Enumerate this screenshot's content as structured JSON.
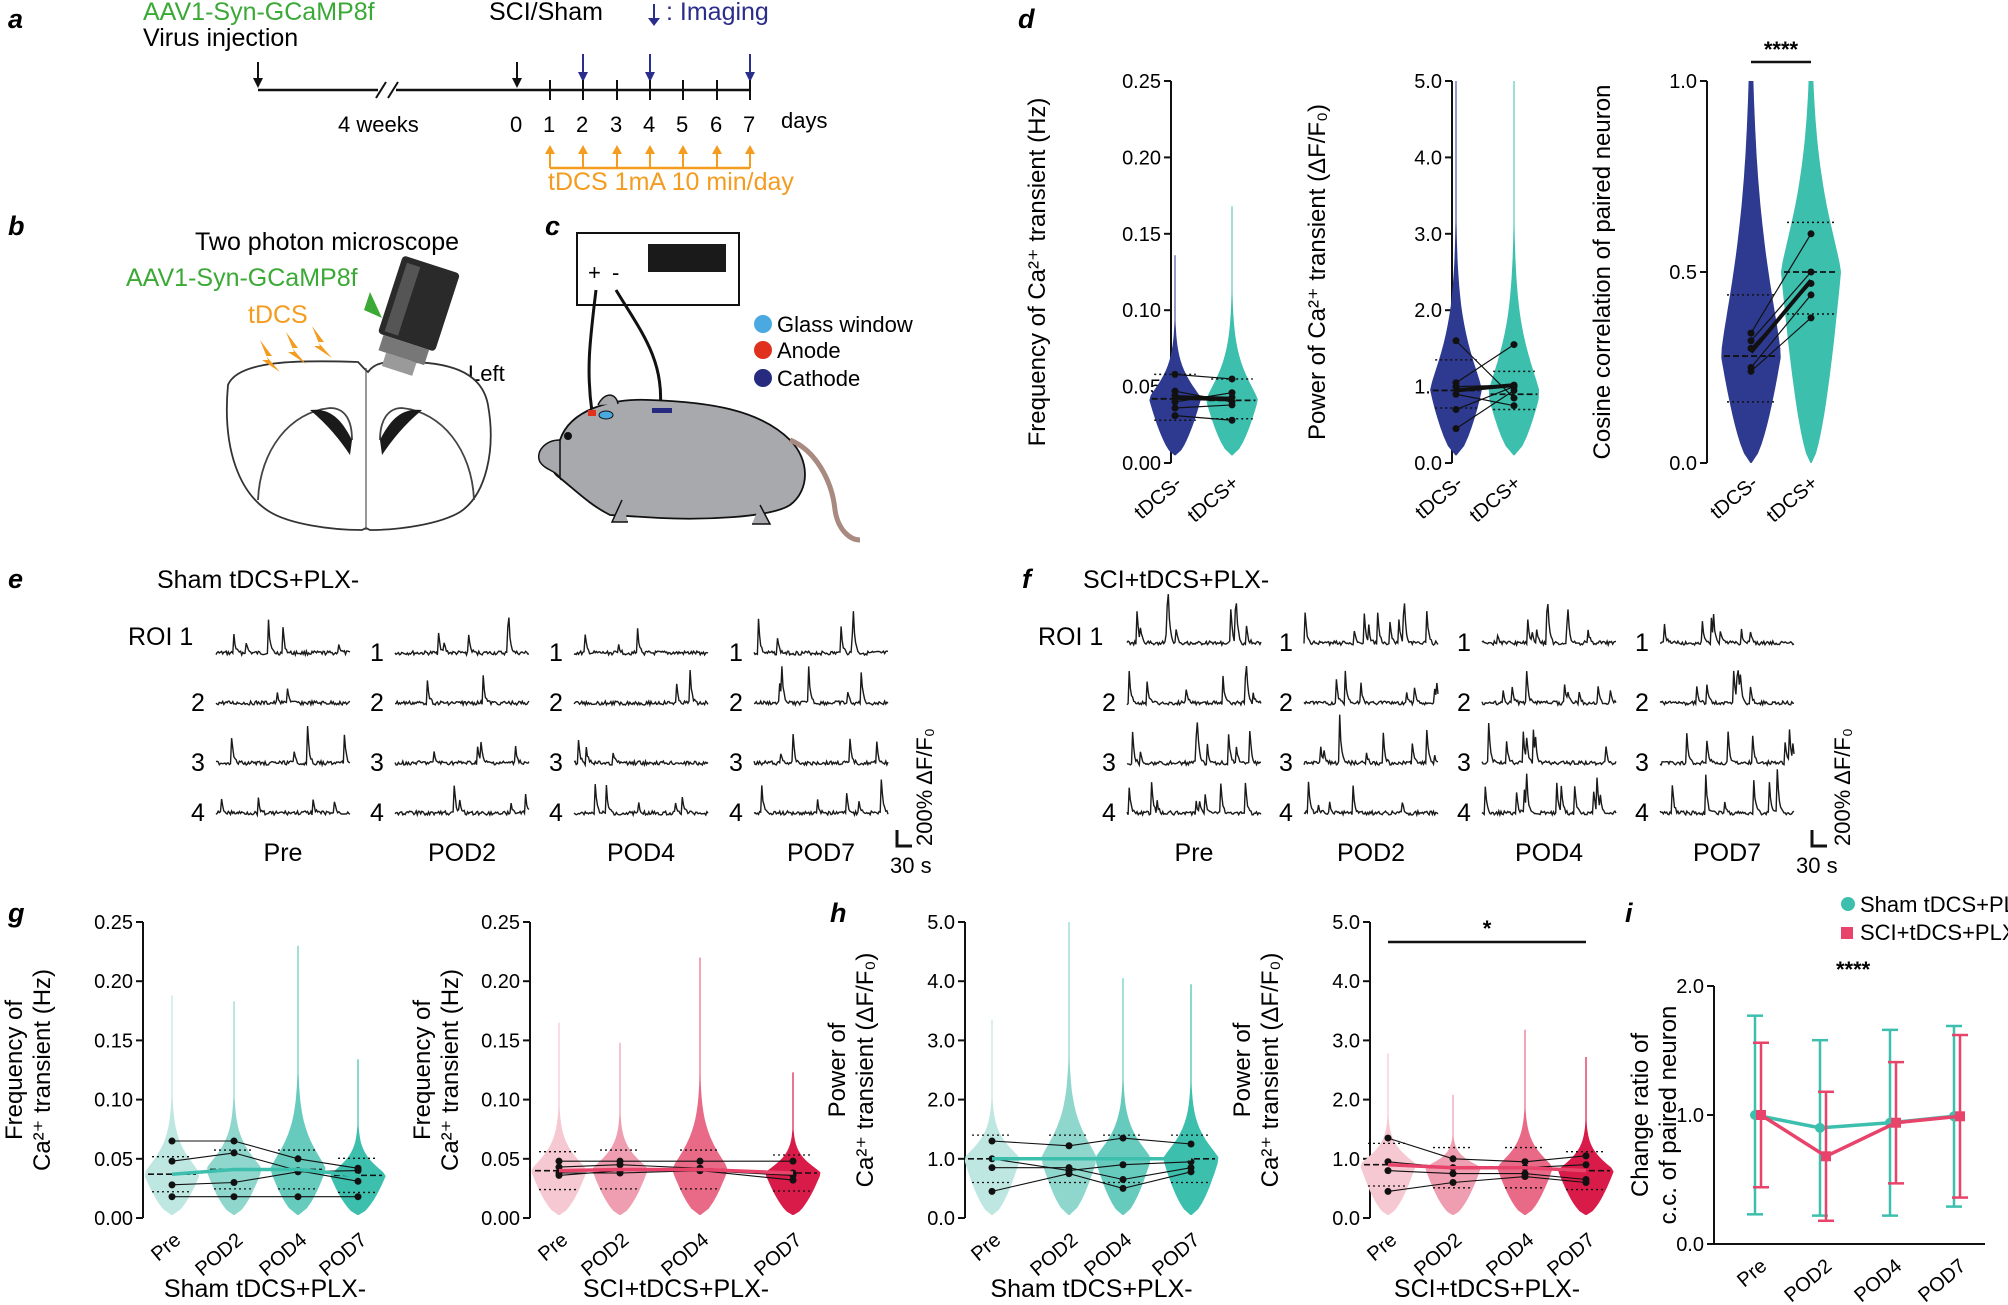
{
  "panel_labels": {
    "a": "a",
    "b": "b",
    "c": "c",
    "d": "d",
    "e": "e",
    "f": "f",
    "g": "g",
    "h": "h",
    "i": "i"
  },
  "colors": {
    "green": "#3aa935",
    "blue_text": "#2b2d8a",
    "orange": "#f39c1f",
    "navy": "#2e3a8f",
    "teal": "#3dbfae",
    "teal_light": "#bfe7e2",
    "teal_mid": "#8fd6cc",
    "pink_light": "#f6c8d1",
    "pink_mid": "#ef9db0",
    "pink": "#e8436a",
    "crimson": "#d81b48",
    "glass": "#4aa9e0",
    "anode": "#e0301e",
    "cathode": "#262b80",
    "mouse": "#a8a9ad"
  },
  "panel_a": {
    "virus_label": "AAV1-Syn-GCaMP8f",
    "virus_sub": "Virus injection",
    "sci_label": "SCI/Sham",
    "imaging_label": ": Imaging",
    "weeks_label": "4 weeks",
    "days": [
      "0",
      "1",
      "2",
      "3",
      "4",
      "5",
      "6",
      "7"
    ],
    "days_label": "days",
    "tdcs_label": "tDCS 1mA 10 min/day"
  },
  "panel_b": {
    "microscope_label": "Two photon microscope",
    "virus_label": "AAV1-Syn-GCaMP8f",
    "tdcs_label": "tDCS",
    "side_label": "Left"
  },
  "panel_c": {
    "plus": "+",
    "minus": "-",
    "legend": [
      "Glass window",
      "Anode",
      "Cathode"
    ]
  },
  "panel_d": {
    "xlabels": [
      "tDCS-",
      "tDCS+"
    ],
    "plot1": {
      "ylabel": "Frequency of Ca²⁺ transient (Hz)",
      "yticks": [
        "0.00",
        "0.05",
        "0.10",
        "0.15",
        "0.20",
        "0.25"
      ]
    },
    "plot2": {
      "ylabel": "Power of Ca²⁺ transient (ΔF/F₀)",
      "yticks": [
        "0.0",
        "1.0",
        "2.0",
        "3.0",
        "4.0",
        "5.0"
      ]
    },
    "plot3": {
      "ylabel": "Cosine correlation of paired neuron",
      "yticks": [
        "0.0",
        "0.5",
        "1.0"
      ],
      "significance": "****"
    }
  },
  "panel_e": {
    "title": "Sham tDCS+PLX-",
    "roi_first": "ROI 1",
    "roi_nums": [
      "1",
      "2",
      "3",
      "4"
    ],
    "conditions": [
      "Pre",
      "POD2",
      "POD4",
      "POD7"
    ],
    "scale_y": "200% ΔF/F₀",
    "scale_x": "30 s"
  },
  "panel_f": {
    "title": "SCI+tDCS+PLX-",
    "roi_first": "ROI 1",
    "roi_nums": [
      "1",
      "2",
      "3",
      "4"
    ],
    "conditions": [
      "Pre",
      "POD2",
      "POD4",
      "POD7"
    ],
    "scale_y": "200% ΔF/F₀",
    "scale_x": "30 s"
  },
  "panel_g": {
    "ylabel_line1": "Frequency of",
    "ylabel_line2": "Ca²⁺ transient (Hz)",
    "yticks": [
      "0.00",
      "0.05",
      "0.10",
      "0.15",
      "0.20",
      "0.25"
    ],
    "xlabels": [
      "Pre",
      "POD2",
      "POD4",
      "POD7"
    ],
    "plot1_title": "Sham tDCS+PLX-",
    "plot2_title": "SCI+tDCS+PLX-"
  },
  "panel_h": {
    "ylabel_line1": "Power of",
    "ylabel_line2": "Ca²⁺ transient (ΔF/F₀)",
    "yticks": [
      "0.0",
      "1.0",
      "2.0",
      "3.0",
      "4.0",
      "5.0"
    ],
    "xlabels": [
      "Pre",
      "POD2",
      "POD4",
      "POD7"
    ],
    "plot1_title": "Sham tDCS+PLX-",
    "plot2_title": "SCI+tDCS+PLX-",
    "significance": "*"
  },
  "panel_i": {
    "ylabel_line1": "Change ratio of",
    "ylabel_line2": "c.c. of paired neuron",
    "yticks": [
      "0.0",
      "1.0",
      "2.0"
    ],
    "xlabels": [
      "Pre",
      "POD2",
      "POD4",
      "POD7"
    ],
    "legend": [
      "Sham tDCS+PLX-",
      "SCI+tDCS+PLX-"
    ],
    "significance": "****"
  },
  "chart_data": [
    {
      "type": "violin",
      "title": "d: Frequency of Ca2+ transient",
      "categories": [
        "tDCS-",
        "tDCS+"
      ],
      "ylabel": "Frequency of Ca2+ transient (Hz)",
      "ylim": [
        0,
        0.25
      ],
      "medians": [
        0.042,
        0.041
      ],
      "quartiles": [
        [
          0.028,
          0.058
        ],
        [
          0.029,
          0.055
        ]
      ],
      "maxima": [
        0.136,
        0.168
      ],
      "paired_means": [
        [
          0.058,
          0.055
        ],
        [
          0.047,
          0.04
        ],
        [
          0.044,
          0.043
        ],
        [
          0.04,
          0.046
        ],
        [
          0.036,
          0.038
        ],
        [
          0.031,
          0.028
        ]
      ]
    },
    {
      "type": "violin",
      "title": "d: Power of Ca2+ transient",
      "categories": [
        "tDCS-",
        "tDCS+"
      ],
      "ylabel": "Power of Ca2+ transient (dF/F0)",
      "ylim": [
        0,
        5
      ],
      "medians": [
        0.95,
        0.9
      ],
      "quartiles": [
        [
          0.72,
          1.35
        ],
        [
          0.7,
          1.2
        ]
      ],
      "maxima": [
        5.0,
        5.0
      ],
      "paired_means": [
        [
          1.6,
          0.85
        ],
        [
          1.05,
          1.55
        ],
        [
          1.0,
          1.02
        ],
        [
          0.9,
          0.75
        ],
        [
          0.7,
          1.0
        ],
        [
          0.45,
          0.95
        ]
      ]
    },
    {
      "type": "violin",
      "title": "d: Cosine correlation of paired neuron",
      "categories": [
        "tDCS-",
        "tDCS+"
      ],
      "ylabel": "Cosine correlation of paired neuron",
      "ylim": [
        0,
        1
      ],
      "medians": [
        0.28,
        0.5
      ],
      "quartiles": [
        [
          0.16,
          0.44
        ],
        [
          0.39,
          0.63
        ]
      ],
      "maxima": [
        1.0,
        1.0
      ],
      "significance": "****",
      "paired_means": [
        [
          0.34,
          0.6
        ],
        [
          0.32,
          0.5
        ],
        [
          0.3,
          0.47
        ],
        [
          0.25,
          0.44
        ],
        [
          0.24,
          0.38
        ]
      ]
    },
    {
      "type": "violin",
      "title": "g: Sham tDCS+PLX-",
      "categories": [
        "Pre",
        "POD2",
        "POD4",
        "POD7"
      ],
      "ylabel": "Frequency of Ca2+ transient (Hz)",
      "ylim": [
        0,
        0.25
      ],
      "means": [
        0.037,
        0.041,
        0.041,
        0.036
      ],
      "maxima": [
        0.188,
        0.183,
        0.23,
        0.134
      ],
      "animal_lines": [
        [
          0.065,
          0.065,
          0.05,
          0.042
        ],
        [
          0.048,
          0.055,
          0.04,
          0.031
        ],
        [
          0.028,
          0.03,
          0.039,
          0.04
        ],
        [
          0.018,
          0.018,
          0.018,
          0.018
        ]
      ]
    },
    {
      "type": "violin",
      "title": "g: SCI+tDCS+PLX-",
      "categories": [
        "Pre",
        "POD2",
        "POD4",
        "POD7"
      ],
      "ylabel": "Frequency of Ca2+ transient (Hz)",
      "ylim": [
        0,
        0.25
      ],
      "means": [
        0.04,
        0.041,
        0.041,
        0.038
      ],
      "maxima": [
        0.165,
        0.148,
        0.22,
        0.123
      ],
      "animal_lines": [
        [
          0.048,
          0.048,
          0.048,
          0.048
        ],
        [
          0.043,
          0.045,
          0.042,
          0.038
        ],
        [
          0.038,
          0.038,
          0.04,
          0.036
        ],
        [
          0.036,
          0.04,
          0.04,
          0.032
        ]
      ]
    },
    {
      "type": "violin",
      "title": "h: Sham tDCS+PLX-",
      "categories": [
        "Pre",
        "POD2",
        "POD4",
        "POD7"
      ],
      "ylabel": "Power of Ca2+ transient (dF/F0)",
      "ylim": [
        0,
        5
      ],
      "means": [
        1.0,
        1.0,
        1.0,
        1.0
      ],
      "maxima": [
        3.35,
        5.0,
        4.05,
        3.95
      ],
      "animal_lines": [
        [
          1.3,
          1.22,
          1.35,
          1.25
        ],
        [
          1.0,
          0.8,
          0.9,
          0.95
        ],
        [
          0.85,
          0.85,
          0.65,
          0.85
        ],
        [
          0.45,
          0.75,
          0.5,
          0.78
        ]
      ]
    },
    {
      "type": "violin",
      "title": "h: SCI+tDCS+PLX-",
      "categories": [
        "Pre",
        "POD2",
        "POD4",
        "POD7"
      ],
      "ylabel": "Power of Ca2+ transient (dF/F0)",
      "ylim": [
        0,
        5
      ],
      "significance": "*",
      "means": [
        0.9,
        0.85,
        0.85,
        0.8
      ],
      "maxima": [
        2.78,
        2.08,
        3.18,
        2.72
      ],
      "animal_lines": [
        [
          1.35,
          1.0,
          0.95,
          1.05
        ],
        [
          0.95,
          0.85,
          0.85,
          0.9
        ],
        [
          0.8,
          0.75,
          0.75,
          0.65
        ],
        [
          0.45,
          0.6,
          0.7,
          0.6
        ]
      ]
    },
    {
      "type": "line",
      "title": "i: Change ratio of c.c. of paired neuron",
      "categories": [
        "Pre",
        "POD2",
        "POD4",
        "POD7"
      ],
      "ylabel": "Change ratio of c.c. of paired neuron",
      "ylim": [
        0,
        2
      ],
      "significance": "****",
      "series": [
        {
          "name": "Sham tDCS+PLX-",
          "values": [
            1.0,
            0.9,
            0.94,
            0.99
          ],
          "error": [
            0.77,
            0.68,
            0.72,
            0.7
          ]
        },
        {
          "name": "SCI+tDCS+PLX-",
          "values": [
            1.0,
            0.68,
            0.94,
            0.99
          ],
          "error": [
            0.56,
            0.5,
            0.47,
            0.63
          ]
        }
      ]
    }
  ]
}
